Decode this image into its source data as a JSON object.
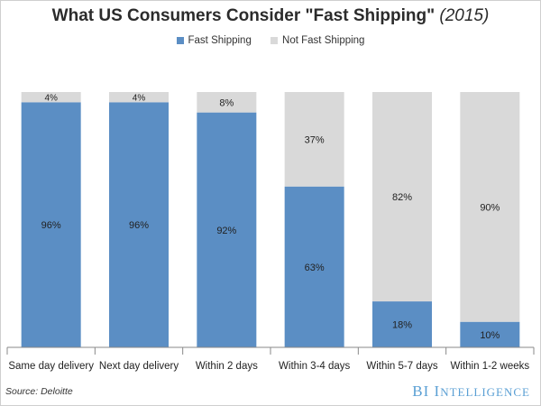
{
  "chart_data": {
    "type": "bar",
    "stacked": true,
    "title": "What US Consumers Consider \"Fast Shipping\"",
    "title_year": "(2015)",
    "categories": [
      "Same day delivery",
      "Next day delivery",
      "Within 2 days",
      "Within 3-4 days",
      "Within 5-7 days",
      "Within 1-2 weeks"
    ],
    "series": [
      {
        "name": "Fast Shipping",
        "color": "#5b8ec4",
        "values": [
          96,
          96,
          92,
          63,
          18,
          10
        ],
        "labels": [
          "96%",
          "96%",
          "92%",
          "63%",
          "18%",
          "10%"
        ]
      },
      {
        "name": "Not Fast Shipping",
        "color": "#d9d9d9",
        "values": [
          4,
          4,
          8,
          37,
          82,
          90
        ],
        "labels": [
          "4%",
          "4%",
          "8%",
          "37%",
          "82%",
          "90%"
        ]
      }
    ],
    "ylim": [
      0,
      100
    ],
    "grid": false,
    "legend_position": "top"
  },
  "footer": {
    "source": "Source: Deloitte",
    "brand_prefix": "BI ",
    "brand_first": "I",
    "brand_rest": "NTELLIGENCE"
  }
}
